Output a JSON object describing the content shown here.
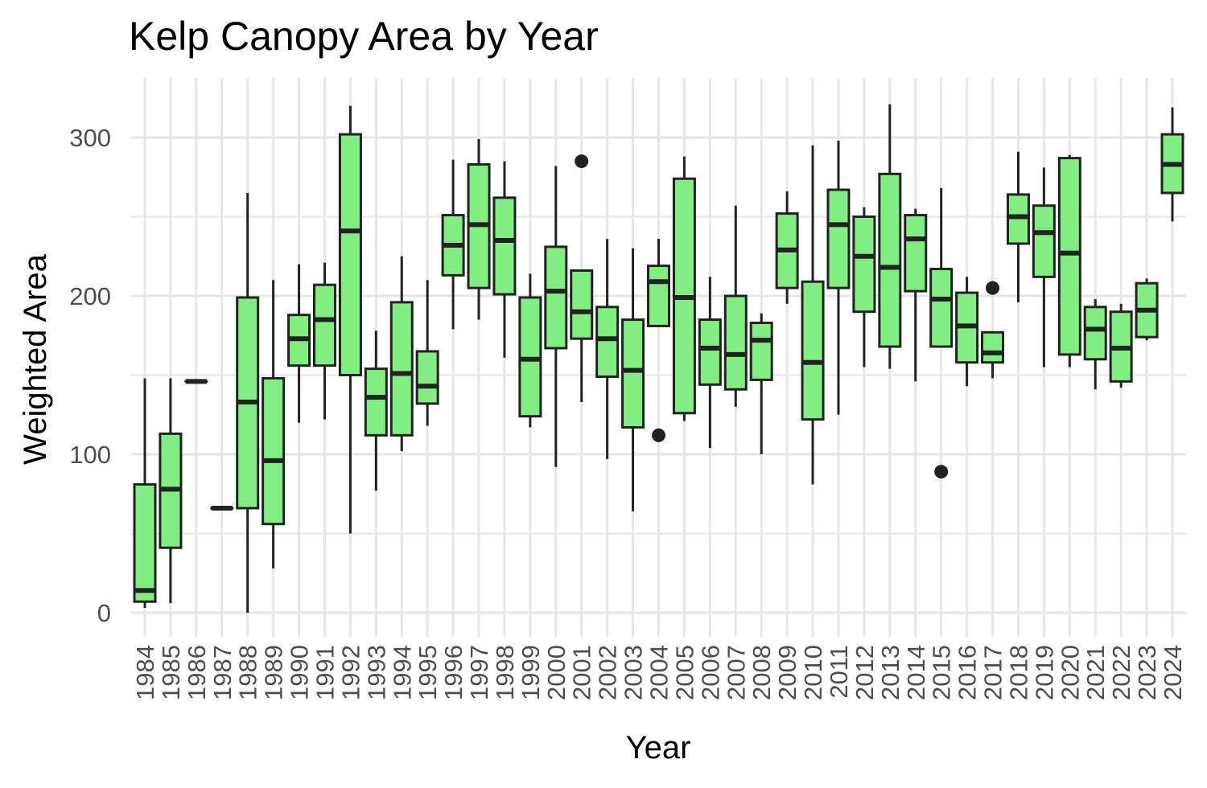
{
  "chart_data": {
    "type": "boxplot",
    "title": "Kelp Canopy Area by Year",
    "xlabel": "Year",
    "ylabel": "Weighted Area",
    "ylim": [
      -15,
      338
    ],
    "yticks": [
      0,
      100,
      200,
      300
    ],
    "grid": true,
    "legend": "none",
    "colors": {
      "box_fill": "#80ee80",
      "box_stroke": "#222222",
      "grid": "#e6e6e6",
      "tick_label": "#4d4d4d",
      "axis_label": "#000000"
    },
    "categories": [
      "1984",
      "1985",
      "1986",
      "1987",
      "1988",
      "1989",
      "1990",
      "1991",
      "1992",
      "1993",
      "1994",
      "1995",
      "1996",
      "1997",
      "1998",
      "1999",
      "2000",
      "2001",
      "2002",
      "2003",
      "2004",
      "2005",
      "2006",
      "2007",
      "2008",
      "2009",
      "2010",
      "2011",
      "2012",
      "2013",
      "2014",
      "2015",
      "2016",
      "2017",
      "2018",
      "2019",
      "2020",
      "2021",
      "2022",
      "2023",
      "2024"
    ],
    "boxes": [
      {
        "year": "1984",
        "min": 3,
        "q1": 7,
        "median": 14,
        "q3": 81,
        "max": 148,
        "outliers": []
      },
      {
        "year": "1985",
        "min": 6,
        "q1": 41,
        "median": 78,
        "q3": 113,
        "max": 148,
        "outliers": []
      },
      {
        "year": "1986",
        "min": 146,
        "q1": 146,
        "median": 146,
        "q3": 146,
        "max": 146,
        "outliers": []
      },
      {
        "year": "1987",
        "min": 66,
        "q1": 66,
        "median": 66,
        "q3": 66,
        "max": 66,
        "outliers": []
      },
      {
        "year": "1988",
        "min": 0,
        "q1": 66,
        "median": 133,
        "q3": 199,
        "max": 265,
        "outliers": []
      },
      {
        "year": "1989",
        "min": 28,
        "q1": 56,
        "median": 96,
        "q3": 148,
        "max": 210,
        "outliers": []
      },
      {
        "year": "1990",
        "min": 120,
        "q1": 156,
        "median": 173,
        "q3": 188,
        "max": 220,
        "outliers": []
      },
      {
        "year": "1991",
        "min": 122,
        "q1": 156,
        "median": 185,
        "q3": 207,
        "max": 221,
        "outliers": []
      },
      {
        "year": "1992",
        "min": 50,
        "q1": 150,
        "median": 241,
        "q3": 302,
        "max": 320,
        "outliers": []
      },
      {
        "year": "1993",
        "min": 77,
        "q1": 112,
        "median": 136,
        "q3": 154,
        "max": 178,
        "outliers": []
      },
      {
        "year": "1994",
        "min": 102,
        "q1": 112,
        "median": 151,
        "q3": 196,
        "max": 225,
        "outliers": []
      },
      {
        "year": "1995",
        "min": 118,
        "q1": 132,
        "median": 143,
        "q3": 165,
        "max": 210,
        "outliers": []
      },
      {
        "year": "1996",
        "min": 179,
        "q1": 213,
        "median": 232,
        "q3": 251,
        "max": 286,
        "outliers": []
      },
      {
        "year": "1997",
        "min": 185,
        "q1": 205,
        "median": 245,
        "q3": 283,
        "max": 299,
        "outliers": []
      },
      {
        "year": "1998",
        "min": 161,
        "q1": 201,
        "median": 235,
        "q3": 262,
        "max": 285,
        "outliers": []
      },
      {
        "year": "1999",
        "min": 117,
        "q1": 124,
        "median": 160,
        "q3": 199,
        "max": 214,
        "outliers": []
      },
      {
        "year": "2000",
        "min": 92,
        "q1": 167,
        "median": 203,
        "q3": 231,
        "max": 282,
        "outliers": []
      },
      {
        "year": "2001",
        "min": 133,
        "q1": 173,
        "median": 190,
        "q3": 216,
        "max": 216,
        "outliers": [
          285
        ]
      },
      {
        "year": "2002",
        "min": 97,
        "q1": 149,
        "median": 173,
        "q3": 193,
        "max": 236,
        "outliers": []
      },
      {
        "year": "2003",
        "min": 64,
        "q1": 117,
        "median": 153,
        "q3": 185,
        "max": 230,
        "outliers": []
      },
      {
        "year": "2004",
        "min": 181,
        "q1": 181,
        "median": 209,
        "q3": 219,
        "max": 236,
        "outliers": [
          112
        ]
      },
      {
        "year": "2005",
        "min": 121,
        "q1": 126,
        "median": 199,
        "q3": 274,
        "max": 288,
        "outliers": []
      },
      {
        "year": "2006",
        "min": 104,
        "q1": 144,
        "median": 167,
        "q3": 185,
        "max": 212,
        "outliers": []
      },
      {
        "year": "2007",
        "min": 130,
        "q1": 141,
        "median": 163,
        "q3": 200,
        "max": 257,
        "outliers": []
      },
      {
        "year": "2008",
        "min": 100,
        "q1": 147,
        "median": 172,
        "q3": 183,
        "max": 189,
        "outliers": []
      },
      {
        "year": "2009",
        "min": 195,
        "q1": 205,
        "median": 229,
        "q3": 252,
        "max": 266,
        "outliers": []
      },
      {
        "year": "2010",
        "min": 81,
        "q1": 122,
        "median": 158,
        "q3": 209,
        "max": 295,
        "outliers": []
      },
      {
        "year": "2011",
        "min": 125,
        "q1": 205,
        "median": 245,
        "q3": 267,
        "max": 298,
        "outliers": []
      },
      {
        "year": "2012",
        "min": 155,
        "q1": 190,
        "median": 225,
        "q3": 250,
        "max": 256,
        "outliers": []
      },
      {
        "year": "2013",
        "min": 154,
        "q1": 168,
        "median": 218,
        "q3": 277,
        "max": 321,
        "outliers": []
      },
      {
        "year": "2014",
        "min": 146,
        "q1": 203,
        "median": 236,
        "q3": 251,
        "max": 255,
        "outliers": []
      },
      {
        "year": "2015",
        "min": 168,
        "q1": 168,
        "median": 198,
        "q3": 217,
        "max": 268,
        "outliers": [
          89
        ]
      },
      {
        "year": "2016",
        "min": 143,
        "q1": 158,
        "median": 181,
        "q3": 202,
        "max": 212,
        "outliers": []
      },
      {
        "year": "2017",
        "min": 148,
        "q1": 158,
        "median": 164,
        "q3": 177,
        "max": 177,
        "outliers": [
          205
        ]
      },
      {
        "year": "2018",
        "min": 196,
        "q1": 233,
        "median": 250,
        "q3": 264,
        "max": 291,
        "outliers": []
      },
      {
        "year": "2019",
        "min": 155,
        "q1": 212,
        "median": 240,
        "q3": 257,
        "max": 281,
        "outliers": []
      },
      {
        "year": "2020",
        "min": 155,
        "q1": 163,
        "median": 227,
        "q3": 287,
        "max": 289,
        "outliers": []
      },
      {
        "year": "2021",
        "min": 141,
        "q1": 160,
        "median": 179,
        "q3": 193,
        "max": 198,
        "outliers": []
      },
      {
        "year": "2022",
        "min": 142,
        "q1": 146,
        "median": 167,
        "q3": 190,
        "max": 195,
        "outliers": []
      },
      {
        "year": "2023",
        "min": 172,
        "q1": 174,
        "median": 191,
        "q3": 208,
        "max": 211,
        "outliers": []
      },
      {
        "year": "2024",
        "min": 247,
        "q1": 265,
        "median": 283,
        "q3": 302,
        "max": 319,
        "outliers": []
      }
    ]
  }
}
